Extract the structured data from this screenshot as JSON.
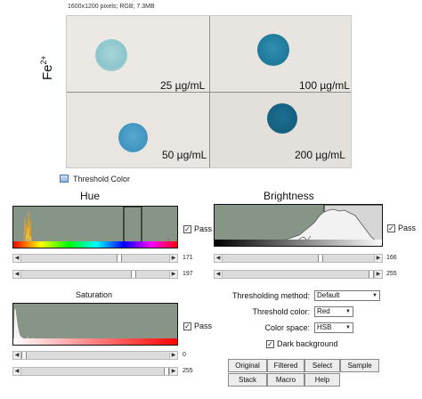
{
  "image": {
    "info": "1600x1200 pixels; RGB; 7.3MB",
    "ion_label": "Fe",
    "ion_charge": "2+",
    "quadrants": [
      {
        "label": "25 µg/mL"
      },
      {
        "label": "100 µg/mL"
      },
      {
        "label": "50 µg/mL"
      },
      {
        "label": "200 µg/mL"
      }
    ]
  },
  "dialog": {
    "title": "Threshold Color",
    "hue": {
      "title": "Hue",
      "pass_label": "Pass",
      "min_value": "171",
      "max_value": "197",
      "min_level": 0.67,
      "max_level": 0.77
    },
    "saturation": {
      "title": "Saturation",
      "pass_label": "Pass",
      "min_value": "0",
      "max_value": "255",
      "min_level": 0.0,
      "max_level": 1.0
    },
    "brightness": {
      "title": "Brightness",
      "pass_label": "Pass",
      "min_value": "166",
      "max_value": "255",
      "min_level": 0.65,
      "max_level": 1.0
    },
    "options": {
      "method_label": "Thresholding method:",
      "method_value": "Default",
      "color_label": "Threshold color:",
      "color_value": "Red",
      "space_label": "Color space:",
      "space_value": "HSB",
      "dark_bg_label": "Dark background"
    },
    "buttons": {
      "original": "Original",
      "filtered": "Filtered",
      "select": "Select",
      "sample": "Sample",
      "stack": "Stack",
      "macro": "Macro",
      "help": "Help"
    }
  }
}
